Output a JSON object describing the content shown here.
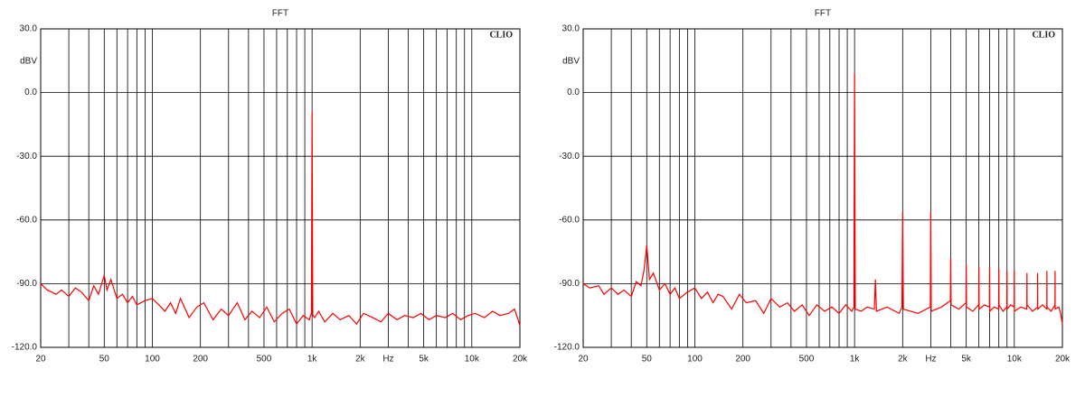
{
  "chart_data": [
    {
      "type": "line",
      "title": "FFT",
      "y_label": "dBV",
      "annotation": "CLIO",
      "xscale": "log",
      "grid": true,
      "xlim": [
        20,
        20000
      ],
      "ylim": [
        -120,
        30
      ],
      "xticks": [
        20,
        50,
        100,
        200,
        500,
        {
          "value": 1000,
          "label": "1k"
        },
        {
          "value": 2000,
          "label": "2k"
        },
        {
          "value": 3000,
          "label": "Hz"
        },
        {
          "value": 5000,
          "label": "5k"
        },
        {
          "value": 10000,
          "label": "10k"
        },
        {
          "value": 20000,
          "label": "20k"
        }
      ],
      "xgrid_minor": [
        30,
        40,
        60,
        70,
        80,
        90,
        300,
        400,
        600,
        700,
        800,
        900,
        4000,
        6000,
        7000,
        8000,
        9000
      ],
      "yticks": [
        {
          "value": 30,
          "label": "30.0"
        },
        {
          "value": 0,
          "label": "0.0"
        },
        {
          "value": -30,
          "label": "-30.0"
        },
        {
          "value": -60,
          "label": "-60.0"
        },
        {
          "value": -90,
          "label": "-90.0"
        },
        {
          "value": -120,
          "label": "-120.0"
        }
      ],
      "series": [
        {
          "color": "#ff0000",
          "x": [
            20,
            22,
            25,
            27,
            30,
            33,
            36,
            40,
            43,
            46,
            50,
            52,
            55,
            60,
            65,
            70,
            75,
            80,
            90,
            100,
            110,
            120,
            130,
            140,
            150,
            170,
            190,
            210,
            240,
            270,
            300,
            340,
            380,
            420,
            470,
            520,
            580,
            650,
            720,
            800,
            880,
            960,
            990,
            1000,
            1010,
            1040,
            1100,
            1200,
            1350,
            1500,
            1700,
            1900,
            2100,
            2400,
            2700,
            3000,
            3400,
            3800,
            4300,
            4800,
            5400,
            6000,
            6800,
            7600,
            8500,
            9500,
            10500,
            12000,
            13500,
            15000,
            17000,
            18500,
            19500,
            20000
          ],
          "values": [
            -90,
            -93,
            -95,
            -93,
            -96,
            -92,
            -94,
            -98,
            -91,
            -95,
            -86,
            -93,
            -88,
            -97,
            -95,
            -99,
            -96,
            -100,
            -98,
            -97,
            -100,
            -103,
            -99,
            -104,
            -97,
            -106,
            -101,
            -99,
            -107,
            -102,
            -105,
            -99,
            -107,
            -103,
            -106,
            -101,
            -108,
            -104,
            -102,
            -109,
            -105,
            -107,
            -104,
            -9,
            -105,
            -106,
            -103,
            -108,
            -104,
            -107,
            -105,
            -109,
            -104,
            -106,
            -108,
            -104,
            -107,
            -105,
            -106,
            -104,
            -107,
            -105,
            -106,
            -104,
            -107,
            -105,
            -104,
            -106,
            -103,
            -105,
            -104,
            -102,
            -107,
            -110
          ]
        }
      ]
    },
    {
      "type": "line",
      "title": "FFT",
      "y_label": "dBV",
      "annotation": "CLIO",
      "xscale": "log",
      "grid": true,
      "xlim": [
        20,
        20000
      ],
      "ylim": [
        -120,
        30
      ],
      "xticks": [
        20,
        50,
        100,
        200,
        500,
        {
          "value": 1000,
          "label": "1k"
        },
        {
          "value": 2000,
          "label": "2k"
        },
        {
          "value": 3000,
          "label": "Hz"
        },
        {
          "value": 5000,
          "label": "5k"
        },
        {
          "value": 10000,
          "label": "10k"
        },
        {
          "value": 20000,
          "label": "20k"
        }
      ],
      "xgrid_minor": [
        30,
        40,
        60,
        70,
        80,
        90,
        300,
        400,
        600,
        700,
        800,
        900,
        4000,
        6000,
        7000,
        8000,
        9000
      ],
      "yticks": [
        {
          "value": 30,
          "label": "30.0"
        },
        {
          "value": 0,
          "label": "0.0"
        },
        {
          "value": -30,
          "label": "-30.0"
        },
        {
          "value": -60,
          "label": "-60.0"
        },
        {
          "value": -90,
          "label": "-90.0"
        },
        {
          "value": -120,
          "label": "-120.0"
        }
      ],
      "series": [
        {
          "color": "#ff0000",
          "x": [
            20,
            22,
            25,
            27,
            30,
            33,
            36,
            40,
            43,
            46,
            48,
            50,
            52,
            55,
            60,
            65,
            70,
            75,
            80,
            90,
            100,
            110,
            120,
            130,
            140,
            150,
            170,
            190,
            210,
            240,
            270,
            300,
            340,
            380,
            420,
            470,
            520,
            580,
            650,
            720,
            800,
            880,
            960,
            990,
            1000,
            1010,
            1100,
            1200,
            1330,
            1350,
            1370,
            1600,
            1900,
            1980,
            2000,
            2020,
            2500,
            2980,
            3000,
            3020,
            3500,
            3980,
            4000,
            4020,
            4500,
            4980,
            5000,
            5020,
            5500,
            5980,
            6000,
            6020,
            6500,
            6980,
            7000,
            7020,
            7500,
            7980,
            8000,
            8020,
            8500,
            8980,
            9000,
            9020,
            9500,
            9980,
            10000,
            10020,
            11000,
            11980,
            12000,
            12020,
            13000,
            13980,
            14000,
            14020,
            15000,
            15980,
            16000,
            16020,
            17000,
            17980,
            18000,
            18020,
            19000,
            19500,
            20000
          ],
          "values": [
            -90,
            -92,
            -91,
            -95,
            -92,
            -95,
            -93,
            -96,
            -89,
            -91,
            -84,
            -72,
            -88,
            -85,
            -93,
            -90,
            -95,
            -92,
            -97,
            -94,
            -92,
            -97,
            -94,
            -99,
            -95,
            -96,
            -102,
            -95,
            -99,
            -98,
            -104,
            -97,
            -101,
            -99,
            -103,
            -100,
            -105,
            -100,
            -103,
            -101,
            -104,
            -100,
            -103,
            -101,
            9,
            -102,
            -103,
            -101,
            -102,
            -88,
            -103,
            -101,
            -104,
            -101,
            -56,
            -102,
            -104,
            -101,
            -56,
            -103,
            -101,
            -98,
            -78,
            -100,
            -102,
            -99,
            -81,
            -101,
            -103,
            -100,
            -82,
            -102,
            -100,
            -101,
            -82,
            -103,
            -101,
            -102,
            -83,
            -100,
            -103,
            -101,
            -84,
            -102,
            -100,
            -101,
            -84,
            -103,
            -101,
            -102,
            -85,
            -100,
            -103,
            -101,
            -85,
            -102,
            -100,
            -102,
            -84,
            -101,
            -103,
            -100,
            -84,
            -102,
            -101,
            -104,
            -109
          ]
        }
      ]
    }
  ]
}
